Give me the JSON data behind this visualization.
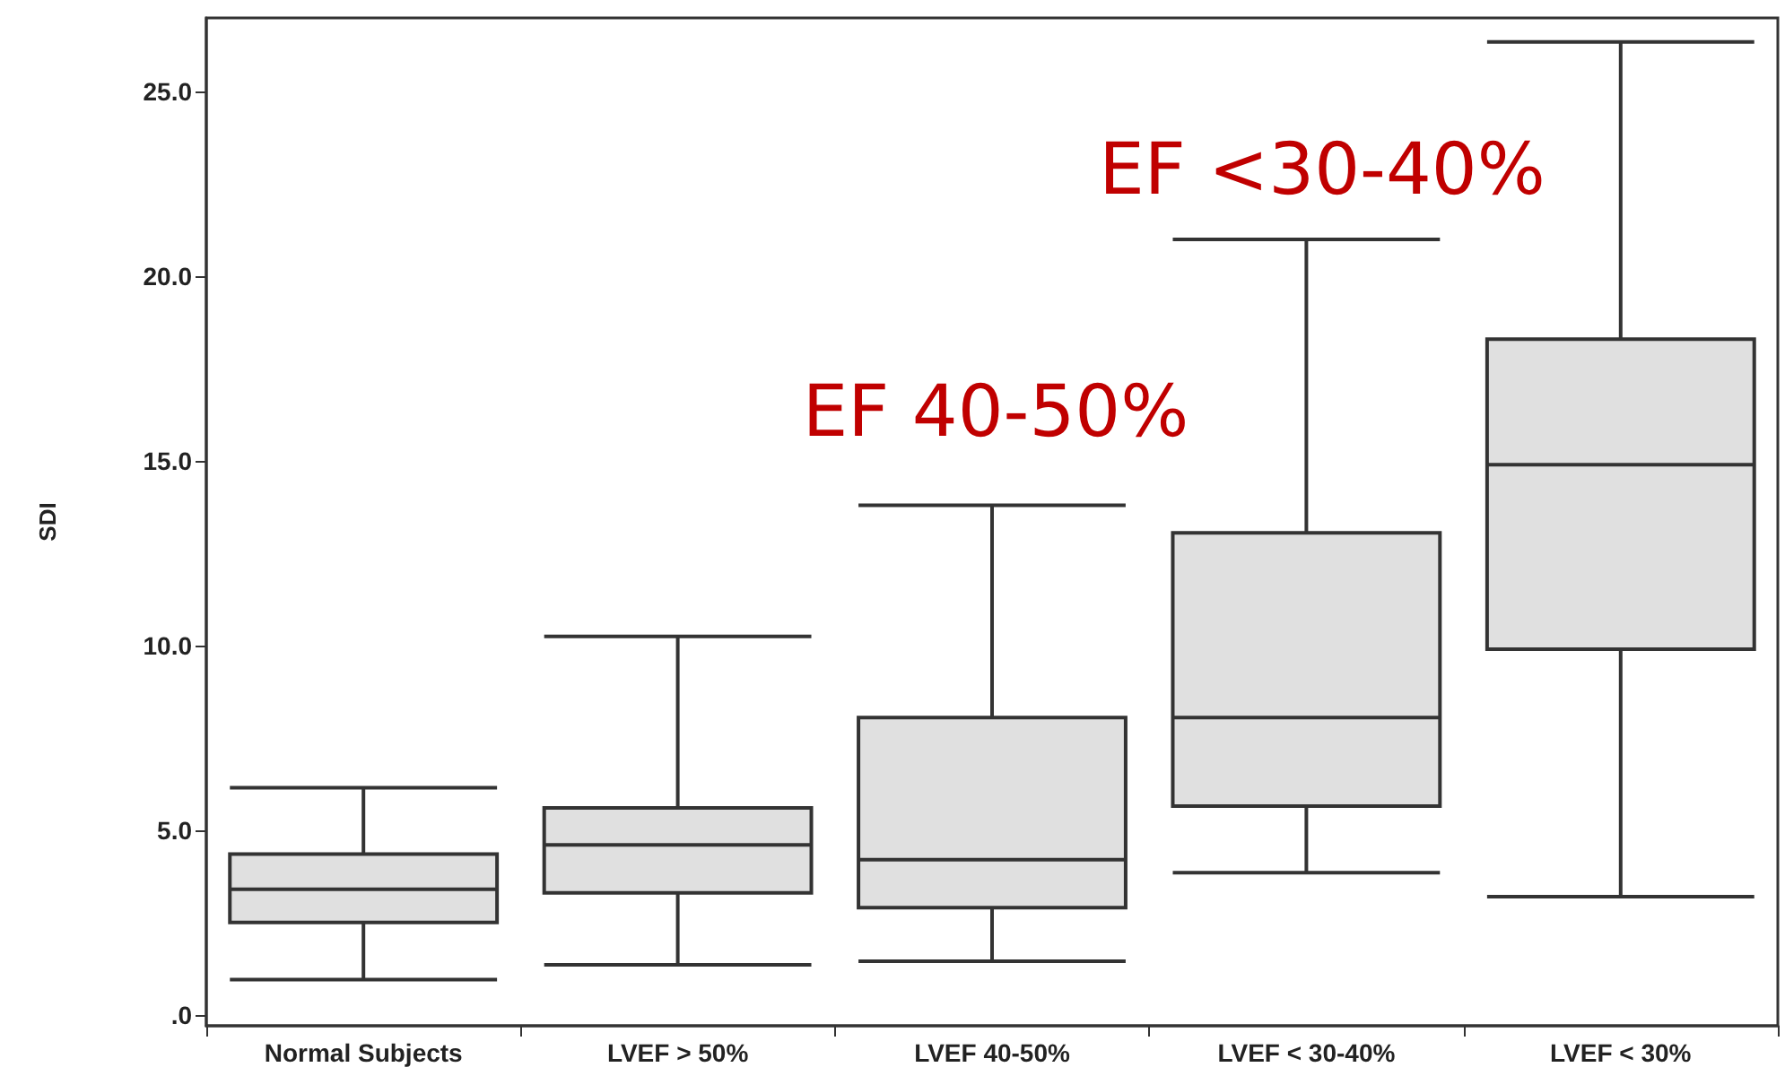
{
  "chart_data": {
    "type": "box",
    "ylabel": "SDI",
    "categories": [
      "Normal Subjects",
      "LVEF > 50%",
      "LVEF 40-50%",
      "LVEF < 30-40%",
      "LVEF < 30%"
    ],
    "boxes": [
      {
        "low": 0.95,
        "q1": 2.5,
        "median": 3.4,
        "q3": 4.35,
        "high": 6.15
      },
      {
        "low": 1.35,
        "q1": 3.3,
        "median": 4.6,
        "q3": 5.6,
        "high": 10.25
      },
      {
        "low": 1.45,
        "q1": 2.9,
        "median": 4.2,
        "q3": 8.05,
        "high": 13.8
      },
      {
        "low": 3.85,
        "q1": 5.65,
        "median": 8.05,
        "q3": 13.05,
        "high": 21.0
      },
      {
        "low": 3.2,
        "q1": 9.9,
        "median": 14.9,
        "q3": 18.3,
        "high": 26.35
      }
    ],
    "color": "#e0e0e0",
    "ylim": [
      -0.3,
      27
    ],
    "yticks": [
      {
        "value": 0,
        "label": ".0"
      },
      {
        "value": 5,
        "label": "5.0"
      },
      {
        "value": 10,
        "label": "10.0"
      },
      {
        "value": 15,
        "label": "15.0"
      },
      {
        "value": 20,
        "label": "20.0"
      },
      {
        "value": 25,
        "label": "25.0"
      }
    ],
    "grid": false,
    "annotations": [
      "EF 40-50%",
      "EF <30-40%"
    ]
  }
}
